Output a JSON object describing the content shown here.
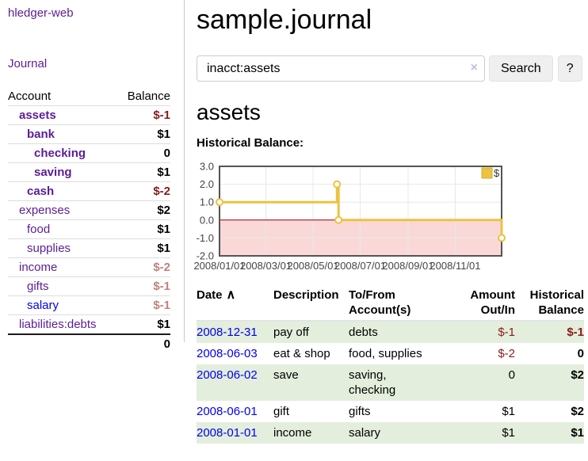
{
  "brand": "hledger-web",
  "nav": {
    "journal": "Journal"
  },
  "header": {
    "title": "sample.journal"
  },
  "search": {
    "value": "inacct:assets",
    "clear_icon": "×",
    "button_label": "Search",
    "help_label": "?"
  },
  "account_page": {
    "heading": "assets",
    "chart_title": "Historical Balance:"
  },
  "sidebar": {
    "col_account": "Account",
    "col_balance": "Balance",
    "accounts": [
      {
        "name": "assets",
        "balance": "$-1",
        "level": 1,
        "bold": true,
        "negative": true,
        "blue": false
      },
      {
        "name": "bank",
        "balance": "$1",
        "level": 2,
        "bold": true,
        "negative": false,
        "blue": false
      },
      {
        "name": "checking",
        "balance": "0",
        "level": 3,
        "bold": true,
        "negative": false,
        "blue": false
      },
      {
        "name": "saving",
        "balance": "$1",
        "level": 3,
        "bold": true,
        "negative": false,
        "blue": false
      },
      {
        "name": "cash",
        "balance": "$-2",
        "level": 2,
        "bold": true,
        "negative": true,
        "blue": false
      },
      {
        "name": "expenses",
        "balance": "$2",
        "level": 1,
        "bold": false,
        "negative": false,
        "blue": false
      },
      {
        "name": "food",
        "balance": "$1",
        "level": 2,
        "bold": false,
        "negative": false,
        "blue": false
      },
      {
        "name": "supplies",
        "balance": "$1",
        "level": 2,
        "bold": false,
        "negative": false,
        "blue": false
      },
      {
        "name": "income",
        "balance": "$-2",
        "level": 1,
        "bold": false,
        "negative": true,
        "blue": false
      },
      {
        "name": "gifts",
        "balance": "$-1",
        "level": 2,
        "bold": false,
        "negative": true,
        "blue": false
      },
      {
        "name": "salary",
        "balance": "$-1",
        "level": 2,
        "bold": false,
        "negative": true,
        "blue": true
      },
      {
        "name": "liabilities:debts",
        "balance": "$1",
        "level": 1,
        "bold": false,
        "negative": false,
        "blue": false
      }
    ],
    "total": "0"
  },
  "chart_data": {
    "type": "line",
    "step": true,
    "title": "Historical Balance",
    "x_range": [
      "2008-01-01",
      "2008-12-31"
    ],
    "ylim": [
      -2.0,
      3.0
    ],
    "grid": true,
    "y_ticks": [
      {
        "value": 3.0,
        "label": "3.0"
      },
      {
        "value": 2.0,
        "label": "2.0"
      },
      {
        "value": 1.0,
        "label": "1.0"
      },
      {
        "value": 0.0,
        "label": "0.0"
      },
      {
        "value": -1.0,
        "label": "-1.0"
      },
      {
        "value": -2.0,
        "label": "-2.0"
      }
    ],
    "x_ticks": [
      {
        "date": "2008-01-01",
        "label": "2008/01/01"
      },
      {
        "date": "2008-03-01",
        "label": "2008/03/01"
      },
      {
        "date": "2008-05-01",
        "label": "2008/05/01"
      },
      {
        "date": "2008-07-01",
        "label": "2008/07/01"
      },
      {
        "date": "2008-09-01",
        "label": "2008/09/01"
      },
      {
        "date": "2008-11-01",
        "label": "2008/11/01"
      }
    ],
    "series": [
      {
        "name": "$",
        "color": "#edc240",
        "points": [
          [
            "2008-01-01",
            1
          ],
          [
            "2008-06-01",
            2
          ],
          [
            "2008-06-03",
            0
          ],
          [
            "2008-12-31",
            -1
          ]
        ]
      }
    ],
    "legend": {
      "label": "$",
      "position": "top-right"
    },
    "negative_band_color": "#fbd8d8",
    "zero_line_color": "#8b0000",
    "border_color": "#545454",
    "gridline_color": "#e8e8e8",
    "tick_text_color": "#444444"
  },
  "register": {
    "headers": {
      "date": "Date",
      "sort_icon": "∧",
      "description": "Description",
      "accounts": "To/From Account(s)",
      "amount": "Amount Out/In",
      "balance": "Historical Balance"
    },
    "rows": [
      {
        "date": "2008-12-31",
        "description": "pay off",
        "accounts": "debts",
        "amount": "$-1",
        "amount_negative": true,
        "balance": "$-1",
        "balance_negative": true
      },
      {
        "date": "2008-06-03",
        "description": "eat & shop",
        "accounts": "food, supplies",
        "amount": "$-2",
        "amount_negative": true,
        "balance": "0",
        "balance_negative": false
      },
      {
        "date": "2008-06-02",
        "description": "save",
        "accounts": "saving, checking",
        "amount": "0",
        "amount_negative": false,
        "balance": "$2",
        "balance_negative": false
      },
      {
        "date": "2008-06-01",
        "description": "gift",
        "accounts": "gifts",
        "amount": "$1",
        "amount_negative": false,
        "balance": "$2",
        "balance_negative": false
      },
      {
        "date": "2008-01-01",
        "description": "income",
        "accounts": "salary",
        "amount": "$1",
        "amount_negative": false,
        "balance": "$1",
        "balance_negative": false
      }
    ]
  }
}
